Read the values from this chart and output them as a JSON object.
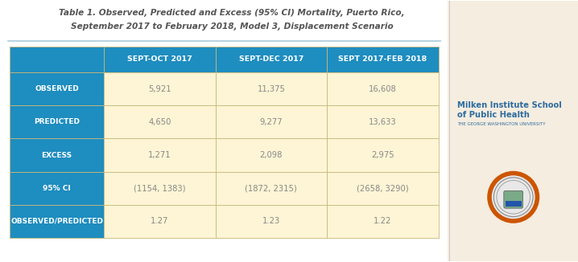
{
  "title_line1": "Table 1. Observed, Predicted and Excess (95% CI) Mortality, Puerto Rico,",
  "title_line2": "September 2017 to February 2018, Model 3, Displacement Scenario",
  "col_headers": [
    "SEPT-OCT 2017",
    "SEPT-DEC 2017",
    "SEPT 2017-FEB 2018"
  ],
  "row_labels": [
    "OBSERVED",
    "PREDICTED",
    "EXCESS",
    "95% CI",
    "OBSERVED/PREDICTED"
  ],
  "data": [
    [
      "5,921",
      "11,375",
      "16,608"
    ],
    [
      "4,650",
      "9,277",
      "13,633"
    ],
    [
      "1,271",
      "2,098",
      "2,975"
    ],
    [
      "(1154, 1383)",
      "(1872, 2315)",
      "(2658, 3290)"
    ],
    [
      "1.27",
      "1.23",
      "1.22"
    ]
  ],
  "header_bg": "#1e8dbf",
  "header_text": "#ffffff",
  "row_label_bg": "#1e8dbf",
  "row_label_text": "#ffffff",
  "data_bg": "#fdf5d5",
  "data_text": "#888888",
  "border_color": "#c8b87a",
  "title_color": "#555555",
  "bg_color": "#ffffff",
  "sidebar_bg": "#f5ede0",
  "divider_color": "#aaccdd",
  "institution_color": "#2e6da0",
  "institution_sub_color": "#2e6da0",
  "seal_outer_color": "#cc5500",
  "seal_inner_color": "#888888",
  "seal_fill": "#e8e8e8"
}
